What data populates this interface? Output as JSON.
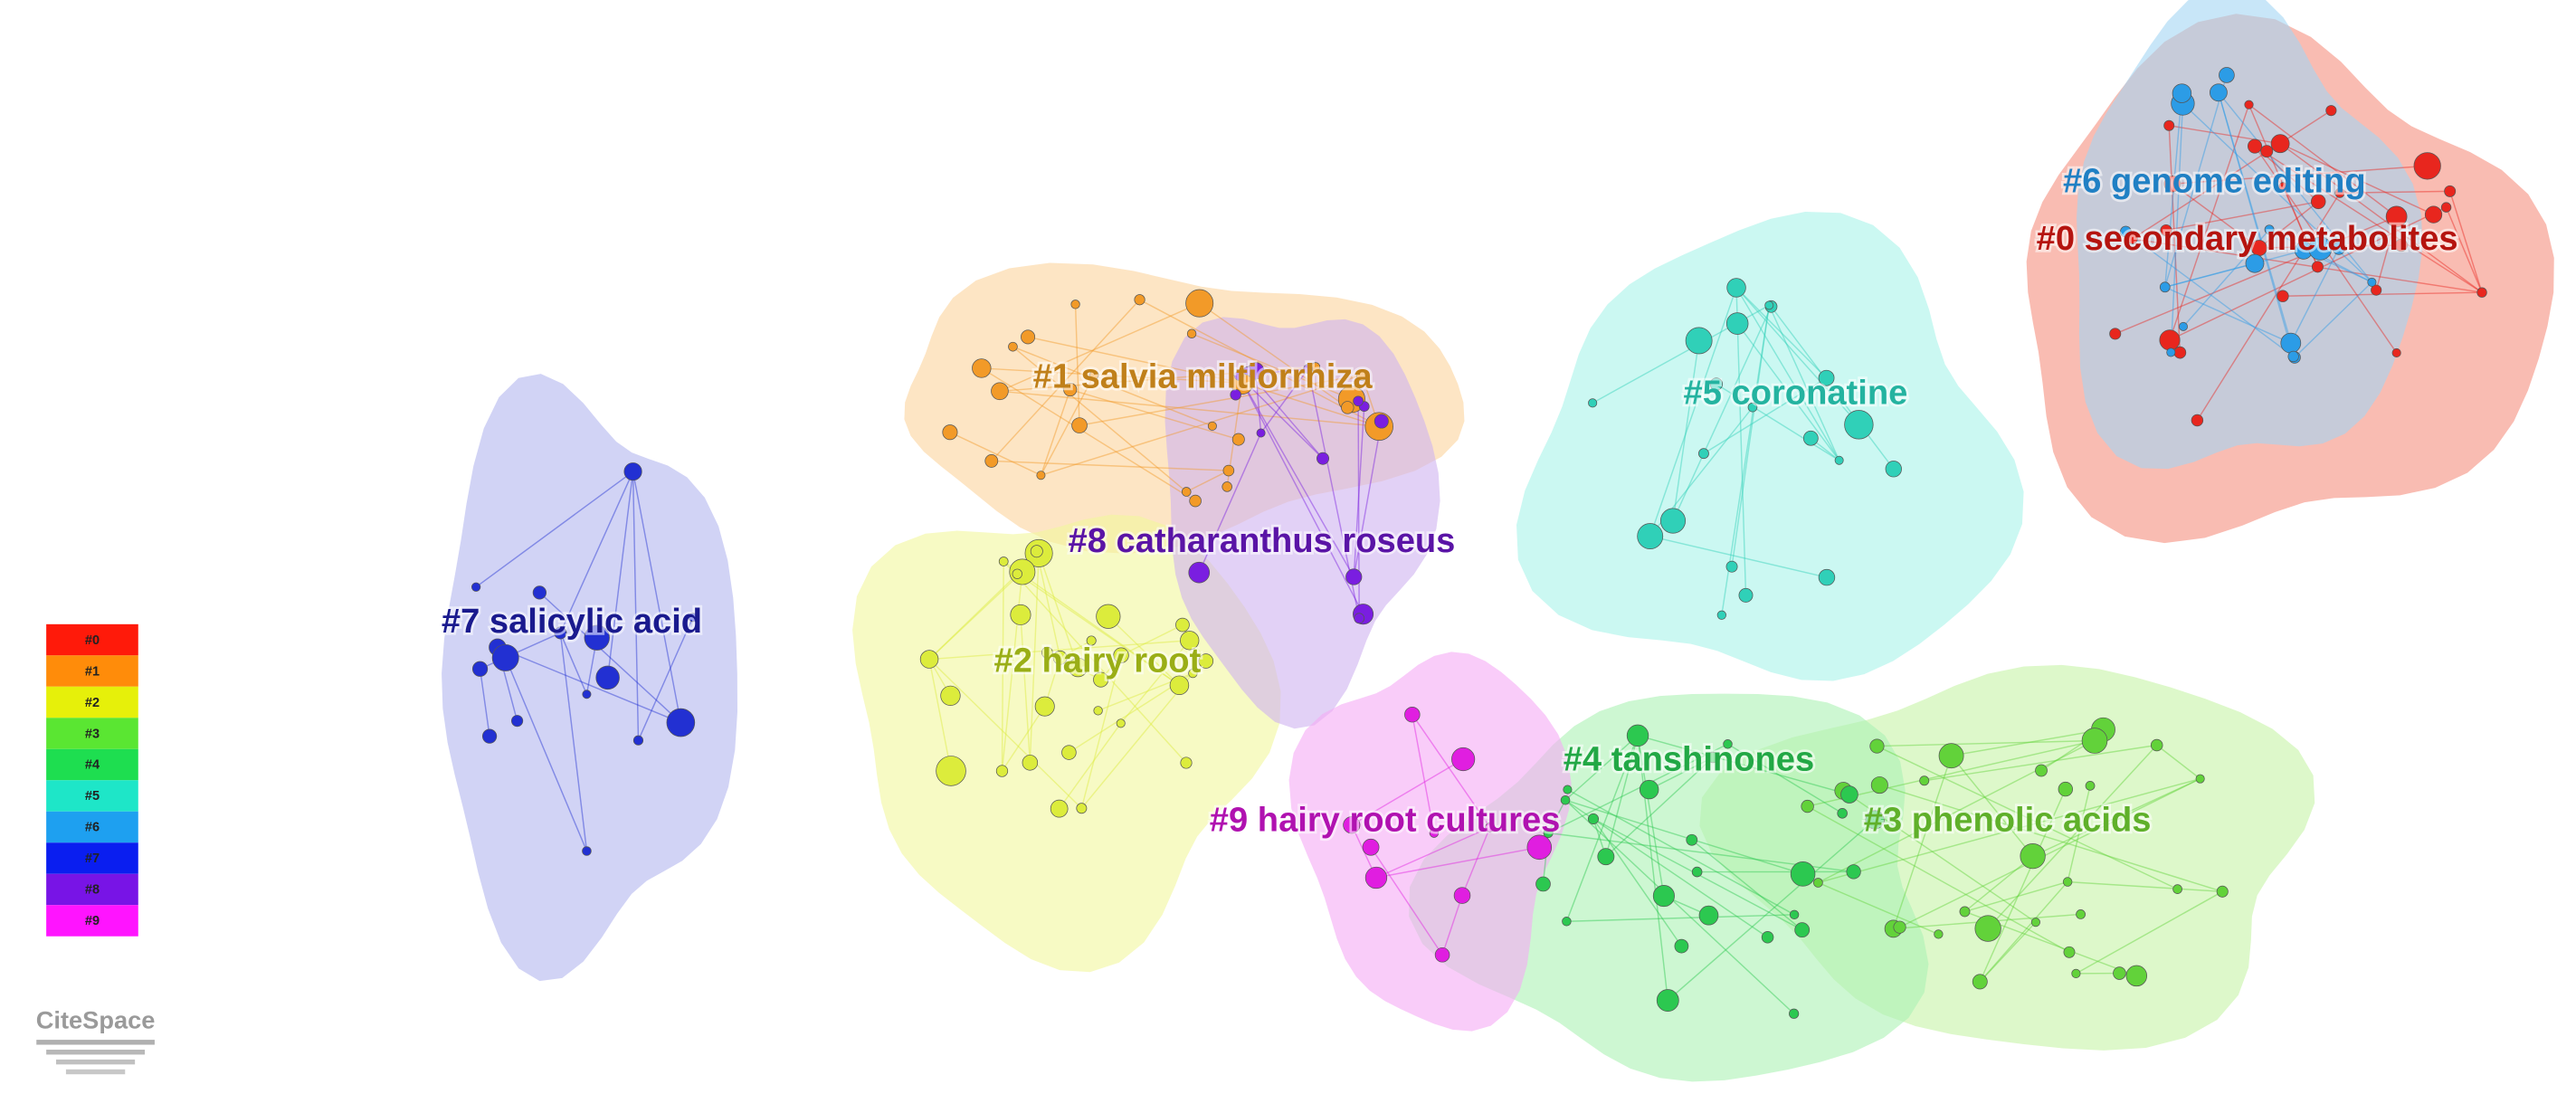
{
  "clusters": [
    {
      "label": "#0 secondary metabolites",
      "color": "#b5140f"
    },
    {
      "label": "#1 salvia miltiorrhiza",
      "color": "#c0801a"
    },
    {
      "label": "#2 hairy root",
      "color": "#9aae16"
    },
    {
      "label": "#3 phenolic acids",
      "color": "#5fb02a"
    },
    {
      "label": "#4 tanshinones",
      "color": "#22a845"
    },
    {
      "label": "#5 coronatine",
      "color": "#24b3a0"
    },
    {
      "label": "#6 genome editing",
      "color": "#2080c4"
    },
    {
      "label": "#7 salicylic acid",
      "color": "#1a1a8e"
    },
    {
      "label": "#8 catharanthus roseus",
      "color": "#5a14a6"
    },
    {
      "label": "#9 hairy root cultures",
      "color": "#b012b0"
    }
  ],
  "legend": {
    "items": [
      {
        "label": "#0",
        "color": "#ff1a0a"
      },
      {
        "label": "#1",
        "color": "#ff8c0a"
      },
      {
        "label": "#2",
        "color": "#e6f00a"
      },
      {
        "label": "#3",
        "color": "#5ae632"
      },
      {
        "label": "#4",
        "color": "#1ede50"
      },
      {
        "label": "#5",
        "color": "#1ee6c8"
      },
      {
        "label": "#6",
        "color": "#1ea0f0"
      },
      {
        "label": "#7",
        "color": "#0a1ef0"
      },
      {
        "label": "#8",
        "color": "#7814e6"
      },
      {
        "label": "#9",
        "color": "#ff14ff"
      }
    ]
  },
  "logo": "CiteSpace"
}
